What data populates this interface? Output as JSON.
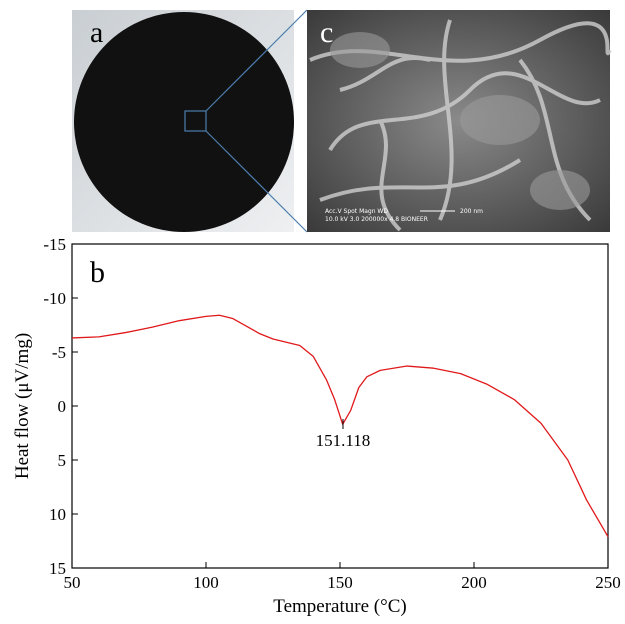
{
  "images": [
    {
      "label": "a"
    },
    {
      "label": "c",
      "caption_lines": [
        "Acc.V  Spot Magn   WD",
        "10.0 kV 3.0  200000x 4.8   BIONEER"
      ],
      "scale_label": "200 nm"
    }
  ],
  "chart_data": {
    "type": "line",
    "panel_label": "b",
    "xlabel": "Temperature (°C)",
    "ylabel": "Heat flow (μV/mg)",
    "x": [
      50,
      60,
      70,
      80,
      90,
      100,
      105,
      110,
      115,
      120,
      125,
      130,
      135,
      140,
      145,
      148,
      151,
      154,
      157,
      160,
      165,
      175,
      185,
      195,
      205,
      215,
      225,
      235,
      242,
      250
    ],
    "series": [
      {
        "color": "#e0191b",
        "values": [
          -6.3,
          -6.4,
          -6.8,
          -7.3,
          -7.9,
          -8.3,
          -8.4,
          -8.1,
          -7.4,
          -6.7,
          -6.2,
          -5.9,
          -5.6,
          -4.6,
          -2.4,
          -0.6,
          1.7,
          0.4,
          -1.7,
          -2.7,
          -3.3,
          -3.7,
          -3.5,
          -3.0,
          -2.0,
          -0.6,
          1.6,
          5.0,
          8.7,
          12.1
        ]
      }
    ],
    "xlim": [
      50,
      250
    ],
    "xticks": [
      50,
      100,
      150,
      200,
      250
    ],
    "ylim": [
      15,
      -15
    ],
    "yticks": [
      -15,
      -10,
      -5,
      0,
      5,
      10,
      15
    ],
    "annotations": [
      {
        "x": 151.118,
        "label": "151.118"
      }
    ]
  }
}
